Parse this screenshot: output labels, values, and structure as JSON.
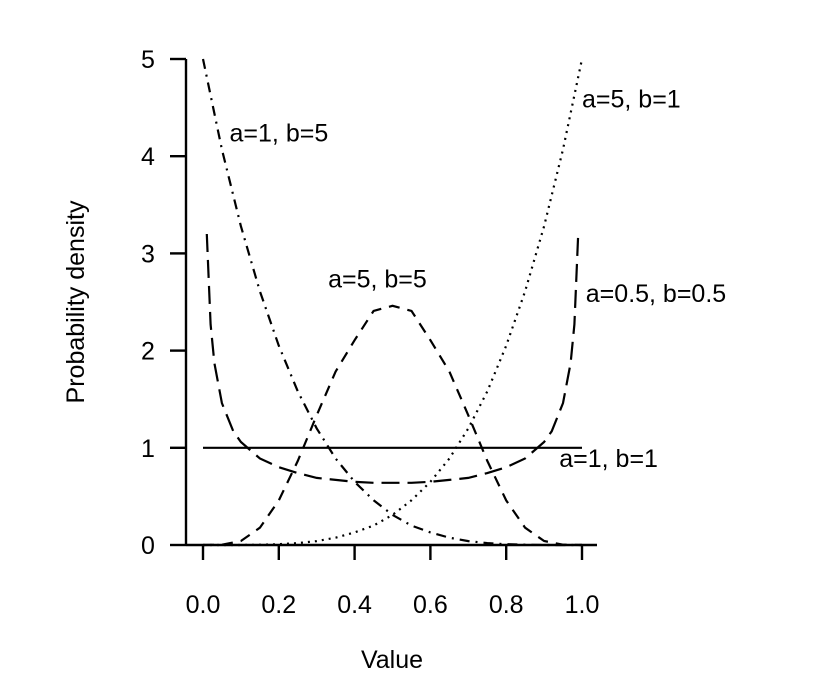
{
  "chart_data": {
    "type": "line",
    "title": "",
    "xlabel": "Value",
    "ylabel": "Probability density",
    "xlim": [
      0,
      1
    ],
    "ylim": [
      0,
      5
    ],
    "xticks": [
      "0.0",
      "0.2",
      "0.4",
      "0.6",
      "0.8",
      "1.0"
    ],
    "yticks": [
      "0",
      "1",
      "2",
      "3",
      "4",
      "5"
    ],
    "grid": false,
    "legend": "none",
    "series": [
      {
        "name": "a=1, b=1",
        "line_style": "solid",
        "x": [
          0.0,
          1.0
        ],
        "y": [
          1.0,
          1.0
        ]
      },
      {
        "name": "a=1, b=5",
        "line_style": "dashdot",
        "x": [
          0.0,
          0.05,
          0.1,
          0.15,
          0.2,
          0.25,
          0.3,
          0.35,
          0.4,
          0.45,
          0.5,
          0.55,
          0.6,
          0.65,
          0.7,
          0.75,
          0.8,
          0.85,
          0.9,
          0.95,
          1.0
        ],
        "y": [
          5.0,
          4.07,
          3.28,
          2.61,
          2.05,
          1.58,
          1.2,
          0.89,
          0.65,
          0.46,
          0.31,
          0.2,
          0.13,
          0.075,
          0.04,
          0.02,
          0.008,
          0.003,
          0.0005,
          3e-05,
          0.0
        ]
      },
      {
        "name": "a=5, b=1",
        "line_style": "dotted",
        "x": [
          0.0,
          0.05,
          0.1,
          0.15,
          0.2,
          0.25,
          0.3,
          0.35,
          0.4,
          0.45,
          0.5,
          0.55,
          0.6,
          0.65,
          0.7,
          0.75,
          0.8,
          0.85,
          0.9,
          0.95,
          1.0
        ],
        "y": [
          0.0,
          3e-05,
          0.0005,
          0.003,
          0.008,
          0.02,
          0.04,
          0.075,
          0.13,
          0.2,
          0.31,
          0.46,
          0.65,
          0.89,
          1.2,
          1.58,
          2.05,
          2.61,
          3.28,
          4.07,
          5.0
        ]
      },
      {
        "name": "a=5, b=5",
        "line_style": "dashed",
        "x": [
          0.0,
          0.05,
          0.1,
          0.15,
          0.2,
          0.25,
          0.3,
          0.35,
          0.4,
          0.45,
          0.5,
          0.55,
          0.6,
          0.65,
          0.7,
          0.75,
          0.8,
          0.85,
          0.9,
          0.95,
          1.0
        ],
        "y": [
          0.0,
          0.0029,
          0.0413,
          0.1782,
          0.4588,
          0.8652,
          1.3341,
          1.7838,
          2.1067,
          2.4085,
          2.4609,
          2.4085,
          2.1067,
          1.7838,
          1.3341,
          0.8652,
          0.4588,
          0.1782,
          0.0413,
          0.0029,
          0.0
        ]
      },
      {
        "name": "a=0.5, b=0.5",
        "line_style": "longdash",
        "x": [
          0.01,
          0.02,
          0.03,
          0.05,
          0.08,
          0.1,
          0.15,
          0.2,
          0.25,
          0.3,
          0.35,
          0.4,
          0.45,
          0.5,
          0.55,
          0.6,
          0.65,
          0.7,
          0.75,
          0.8,
          0.85,
          0.9,
          0.92,
          0.95,
          0.97,
          0.98,
          0.99
        ],
        "y": [
          3.2,
          2.27,
          1.87,
          1.46,
          1.17,
          1.06,
          0.89,
          0.8,
          0.74,
          0.69,
          0.67,
          0.65,
          0.64,
          0.64,
          0.64,
          0.65,
          0.67,
          0.69,
          0.74,
          0.8,
          0.89,
          1.06,
          1.17,
          1.46,
          1.87,
          2.27,
          3.2
        ]
      }
    ],
    "annotations": [
      {
        "text": "a=1, b=5",
        "x": 0.07,
        "y": 4.15
      },
      {
        "text": "a=5, b=1",
        "x": 1.0,
        "y": 4.5
      },
      {
        "text": "a=5, b=5",
        "x": 0.33,
        "y": 2.65
      },
      {
        "text": "a=0.5, b=0.5",
        "x": 1.01,
        "y": 2.5
      },
      {
        "text": "a=1, b=1",
        "x": 0.94,
        "y": 0.8
      }
    ]
  }
}
